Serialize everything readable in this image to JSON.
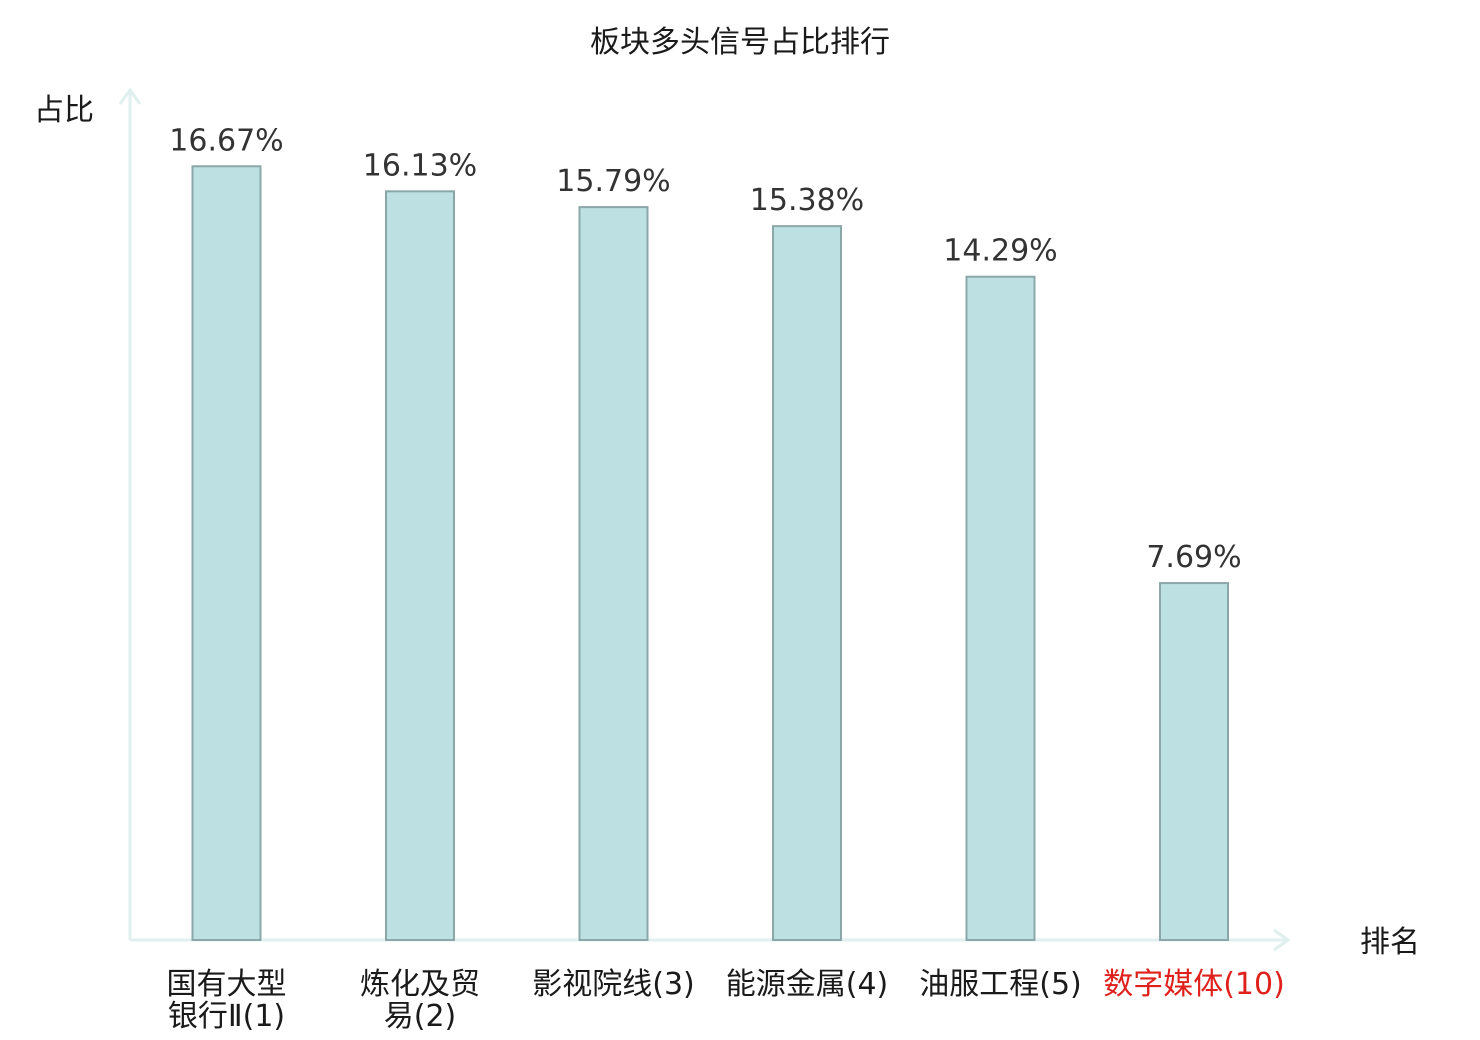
{
  "chart_data": {
    "type": "bar",
    "title": "板块多头信号占比排行",
    "ylabel": "占比",
    "xlabel": "排名",
    "categories": [
      {
        "lines": [
          "国有大型",
          "银行Ⅱ(1)"
        ],
        "highlight": false
      },
      {
        "lines": [
          "炼化及贸",
          "易(2)"
        ],
        "highlight": false
      },
      {
        "lines": [
          "影视院线(3)"
        ],
        "highlight": false
      },
      {
        "lines": [
          "能源金属(4)"
        ],
        "highlight": false
      },
      {
        "lines": [
          "油服工程(5)"
        ],
        "highlight": false
      },
      {
        "lines": [
          "数字媒体(10)"
        ],
        "highlight": true
      }
    ],
    "values": [
      16.67,
      16.13,
      15.79,
      15.38,
      14.29,
      7.69
    ],
    "data_labels": [
      "16.67%",
      "16.13%",
      "15.79%",
      "15.38%",
      "14.29%",
      "7.69%"
    ],
    "ylim": [
      0,
      18.27
    ],
    "grid": false,
    "legend": "none",
    "colors": {
      "bar_fill": "#bde0e3",
      "bar_stroke": "#8aa7a9",
      "axis": "#dff0ee",
      "highlight_text": "#e0201b"
    }
  }
}
